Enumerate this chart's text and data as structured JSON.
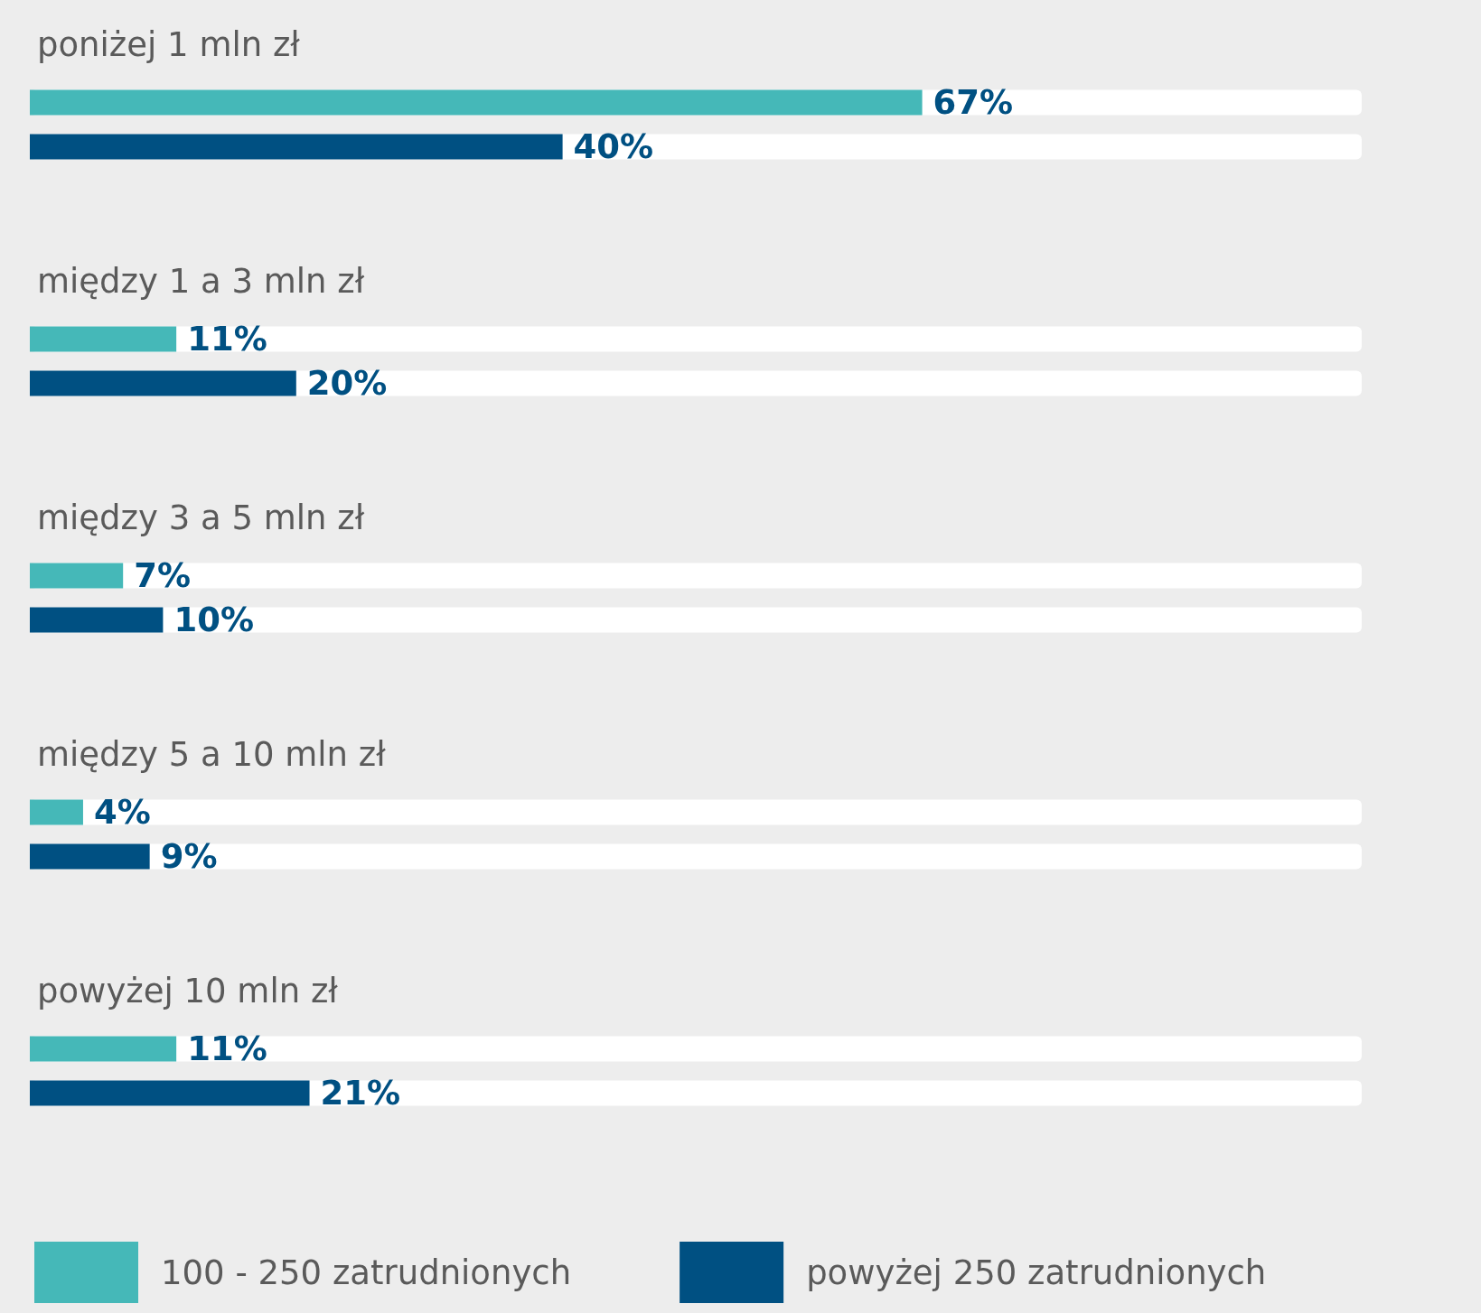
{
  "chart_data": {
    "type": "bar",
    "orientation": "horizontal",
    "categories": [
      "poniżej 1 mln zł",
      "między 1 a 3 mln zł",
      "między 3 a 5 mln zł",
      "między 5 a 10 mln zł",
      "powyżej 10 mln zł"
    ],
    "series": [
      {
        "name": "100 - 250 zatrudnionych",
        "color": "#45b8b8",
        "values": [
          67,
          11,
          7,
          4,
          11
        ],
        "value_labels": [
          "67%",
          "11%",
          "7%",
          "4%",
          "11%"
        ]
      },
      {
        "name": "powyżej 250 zatrudnionych",
        "color": "#005082",
        "values": [
          40,
          20,
          10,
          9,
          21
        ],
        "value_labels": [
          "40%",
          "20%",
          "10%",
          "9%",
          "21%"
        ]
      }
    ],
    "xlim": [
      0,
      100
    ],
    "tick_labels": "y",
    "legend": "bottom left"
  }
}
